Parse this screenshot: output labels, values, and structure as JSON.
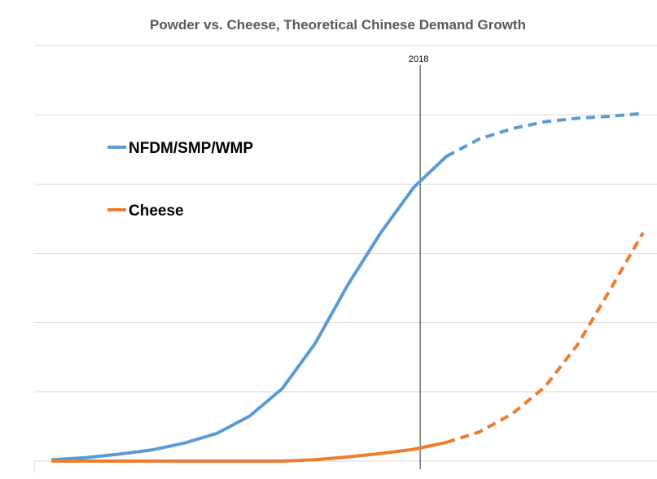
{
  "chart_data": {
    "type": "line",
    "title": "Powder vs. Cheese, Theoretical Chinese Demand Growth",
    "xlabel": "",
    "ylabel": "",
    "x": [
      0,
      1,
      2,
      3,
      4,
      5,
      6,
      7,
      8,
      9,
      10,
      11,
      12,
      13,
      14,
      15,
      16,
      17,
      18
    ],
    "ylim": [
      0,
      6
    ],
    "grid": true,
    "legend_position": "left",
    "vertical_marker": {
      "label": "2018",
      "x": 11.2
    },
    "series": [
      {
        "name": "NFDM/SMP/WMP",
        "color": "#5b9bd5",
        "actual": [
          [
            0,
            0.02
          ],
          [
            1,
            0.05
          ],
          [
            2,
            0.1
          ],
          [
            3,
            0.16
          ],
          [
            4,
            0.26
          ],
          [
            5,
            0.4
          ],
          [
            6,
            0.65
          ],
          [
            7,
            1.05
          ],
          [
            8,
            1.7
          ],
          [
            9,
            2.55
          ],
          [
            10,
            3.3
          ],
          [
            11,
            3.95
          ],
          [
            12,
            4.4
          ]
        ],
        "projected": [
          [
            12,
            4.4
          ],
          [
            13,
            4.65
          ],
          [
            14,
            4.8
          ],
          [
            15,
            4.9
          ],
          [
            16,
            4.95
          ],
          [
            17,
            4.98
          ],
          [
            18,
            5.02
          ]
        ]
      },
      {
        "name": "Cheese",
        "color": "#ed7d31",
        "actual": [
          [
            0,
            0
          ],
          [
            1,
            0
          ],
          [
            2,
            0
          ],
          [
            3,
            0
          ],
          [
            4,
            0
          ],
          [
            5,
            0
          ],
          [
            6,
            0
          ],
          [
            7,
            0
          ],
          [
            8,
            0.02
          ],
          [
            9,
            0.06
          ],
          [
            10,
            0.11
          ],
          [
            11,
            0.17
          ],
          [
            12,
            0.27
          ]
        ],
        "projected": [
          [
            12,
            0.27
          ],
          [
            13,
            0.42
          ],
          [
            14,
            0.68
          ],
          [
            15,
            1.07
          ],
          [
            16,
            1.68
          ],
          [
            17,
            2.48
          ],
          [
            18,
            3.3
          ]
        ]
      }
    ]
  }
}
